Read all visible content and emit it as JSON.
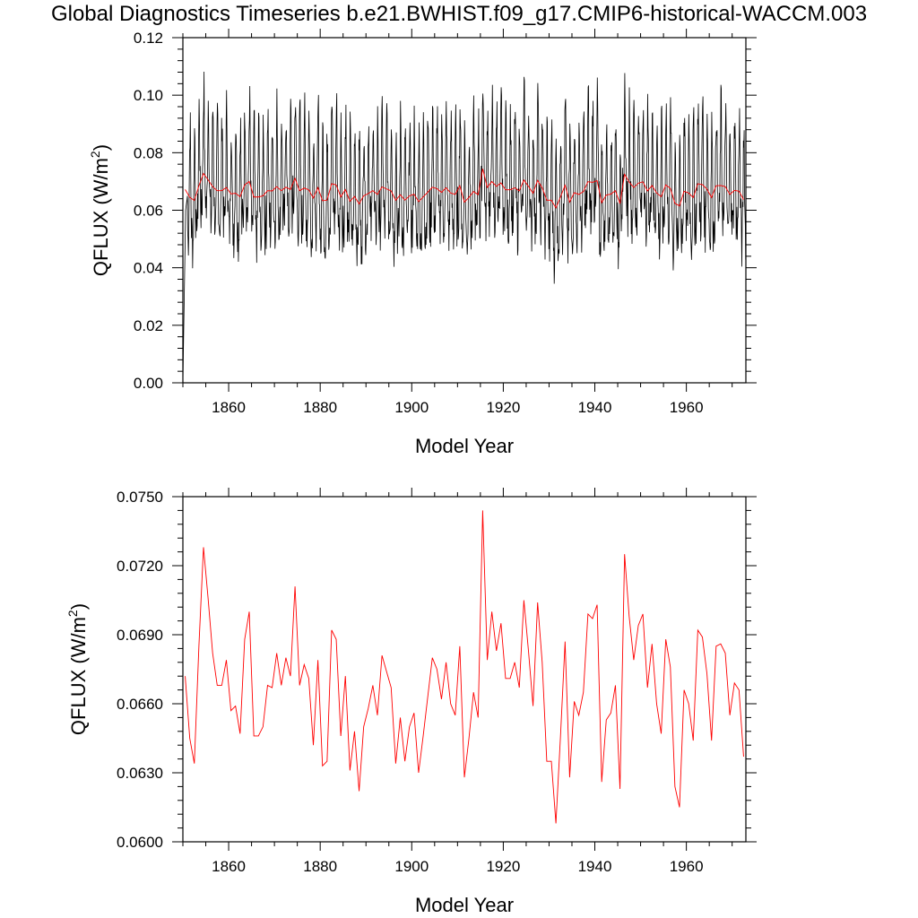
{
  "title": "Global Diagnostics Timeseries b.e21.BWHIST.f09_g17.CMIP6-historical-WACCM.003",
  "colors": {
    "monthly": "#000000",
    "annual": "#ff0000",
    "axis": "#000000"
  },
  "chart_data": [
    {
      "type": "line",
      "xlabel": "Model Year",
      "ylabel_main": "QFLUX (W/m",
      "ylabel_sup": "2",
      "ylabel_end": ")",
      "xlim": [
        1850,
        1973
      ],
      "ylim": [
        0.0,
        0.12
      ],
      "xticks": [
        1860,
        1880,
        1900,
        1920,
        1940,
        1960
      ],
      "yticks": [
        0.0,
        0.02,
        0.04,
        0.06,
        0.08,
        0.1,
        0.12
      ],
      "ytick_labels": [
        "0.00",
        "0.02",
        "0.04",
        "0.06",
        "0.08",
        "0.10",
        "0.12"
      ],
      "series": [
        {
          "color": "#000000",
          "monthly_seasonal_cycle": [
            0.058,
            0.054,
            0.056,
            0.061,
            0.072,
            0.085,
            0.094,
            0.092,
            0.078,
            0.065,
            0.059,
            0.057
          ],
          "start_x": [
            1850.0,
            1850.3,
            1850.6,
            1851.0
          ],
          "start_y": [
            0.0,
            0.03,
            0.06,
            0.065
          ]
        },
        {
          "color": "#ff0000",
          "from": "annual"
        }
      ]
    },
    {
      "type": "line",
      "xlabel": "Model Year",
      "ylabel_main": "QFLUX (W/m",
      "ylabel_sup": "2",
      "ylabel_end": ")",
      "xlim": [
        1850,
        1973
      ],
      "ylim": [
        0.06,
        0.075
      ],
      "xticks": [
        1860,
        1880,
        1900,
        1920,
        1940,
        1960
      ],
      "yticks": [
        0.06,
        0.063,
        0.066,
        0.069,
        0.072,
        0.075
      ],
      "ytick_labels": [
        "0.0600",
        "0.0630",
        "0.0660",
        "0.0690",
        "0.0720",
        "0.0750"
      ],
      "series": [
        {
          "color": "#ff0000",
          "x_start": 1850.5,
          "x_step": 1,
          "values": [
            0.0672,
            0.0645,
            0.0634,
            0.0685,
            0.0728,
            0.0706,
            0.0682,
            0.0668,
            0.0668,
            0.0679,
            0.0657,
            0.0659,
            0.0647,
            0.0688,
            0.07,
            0.0646,
            0.0646,
            0.065,
            0.0668,
            0.0667,
            0.0682,
            0.0668,
            0.068,
            0.0672,
            0.0711,
            0.0668,
            0.0677,
            0.0671,
            0.0642,
            0.0679,
            0.0633,
            0.0635,
            0.0692,
            0.0688,
            0.0646,
            0.0672,
            0.0631,
            0.0648,
            0.0622,
            0.065,
            0.0658,
            0.0668,
            0.0655,
            0.0681,
            0.0674,
            0.0667,
            0.0634,
            0.0654,
            0.0635,
            0.065,
            0.0656,
            0.063,
            0.0646,
            0.0663,
            0.068,
            0.0675,
            0.0662,
            0.0678,
            0.066,
            0.0655,
            0.0685,
            0.0628,
            0.0645,
            0.0665,
            0.0654,
            0.0744,
            0.0679,
            0.07,
            0.0683,
            0.0695,
            0.0671,
            0.0671,
            0.0678,
            0.0667,
            0.0705,
            0.0683,
            0.0659,
            0.0704,
            0.0678,
            0.0635,
            0.0635,
            0.0608,
            0.0646,
            0.0687,
            0.0628,
            0.0661,
            0.0655,
            0.0665,
            0.0699,
            0.0697,
            0.0703,
            0.0626,
            0.0653,
            0.0656,
            0.0668,
            0.0623,
            0.0725,
            0.0698,
            0.0679,
            0.0694,
            0.0699,
            0.0667,
            0.0686,
            0.066,
            0.0647,
            0.0688,
            0.0676,
            0.0624,
            0.0615,
            0.0666,
            0.066,
            0.0644,
            0.0692,
            0.0689,
            0.0673,
            0.0644,
            0.0685,
            0.0686,
            0.0682,
            0.0655,
            0.0669,
            0.0666,
            0.0637
          ]
        }
      ]
    }
  ]
}
